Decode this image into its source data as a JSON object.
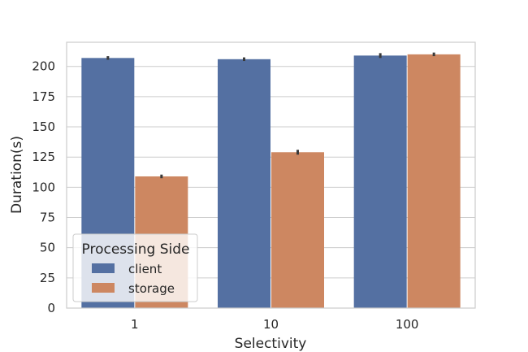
{
  "chart_data": {
    "type": "bar",
    "xlabel": "Selectivity",
    "ylabel": "Duration(s)",
    "categories": [
      "1",
      "10",
      "100"
    ],
    "ylim": [
      0,
      220
    ],
    "yticks": [
      0,
      25,
      50,
      75,
      100,
      125,
      150,
      175,
      200
    ],
    "grid": true,
    "legend": {
      "title": "Processing Side",
      "placement": "lower-left"
    },
    "series": [
      {
        "name": "client",
        "color": "#5470a2",
        "values": [
          207,
          206,
          209
        ],
        "error": [
          1.5,
          1.5,
          2
        ]
      },
      {
        "name": "storage",
        "color": "#cd8761",
        "values": [
          109,
          129,
          210
        ],
        "error": [
          1.5,
          2,
          1.5
        ]
      }
    ]
  }
}
